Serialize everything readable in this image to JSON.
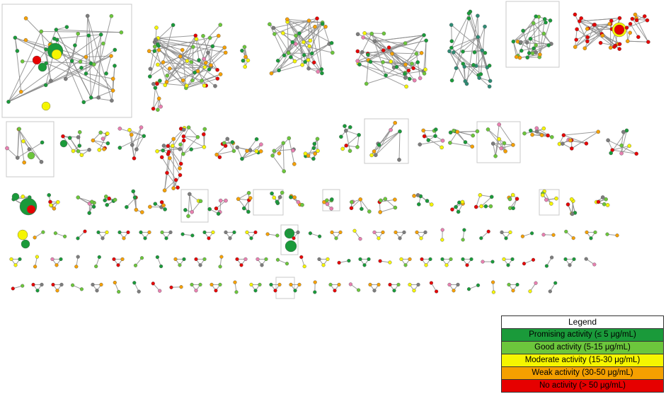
{
  "legend": {
    "title": "Legend",
    "items": [
      {
        "label": "Promising activity (≤ 5 μg/mL)",
        "color": "#1a9a3a"
      },
      {
        "label": "Good activity (5-15 μg/mL)",
        "color": "#6cc63c"
      },
      {
        "label": "Moderate activity (15-30 μg/mL)",
        "color": "#f5f500"
      },
      {
        "label": "Weak activity (30-50 μg/mL)",
        "color": "#f5a000"
      },
      {
        "label": "No activity (> 50 μg/mL)",
        "color": "#e60000"
      }
    ]
  },
  "colors": {
    "edge": "#8a8a8a",
    "unannotated_node": "#7d7d7d",
    "pink_node": "#e880b0",
    "teal_node": "#2e8b74"
  }
}
